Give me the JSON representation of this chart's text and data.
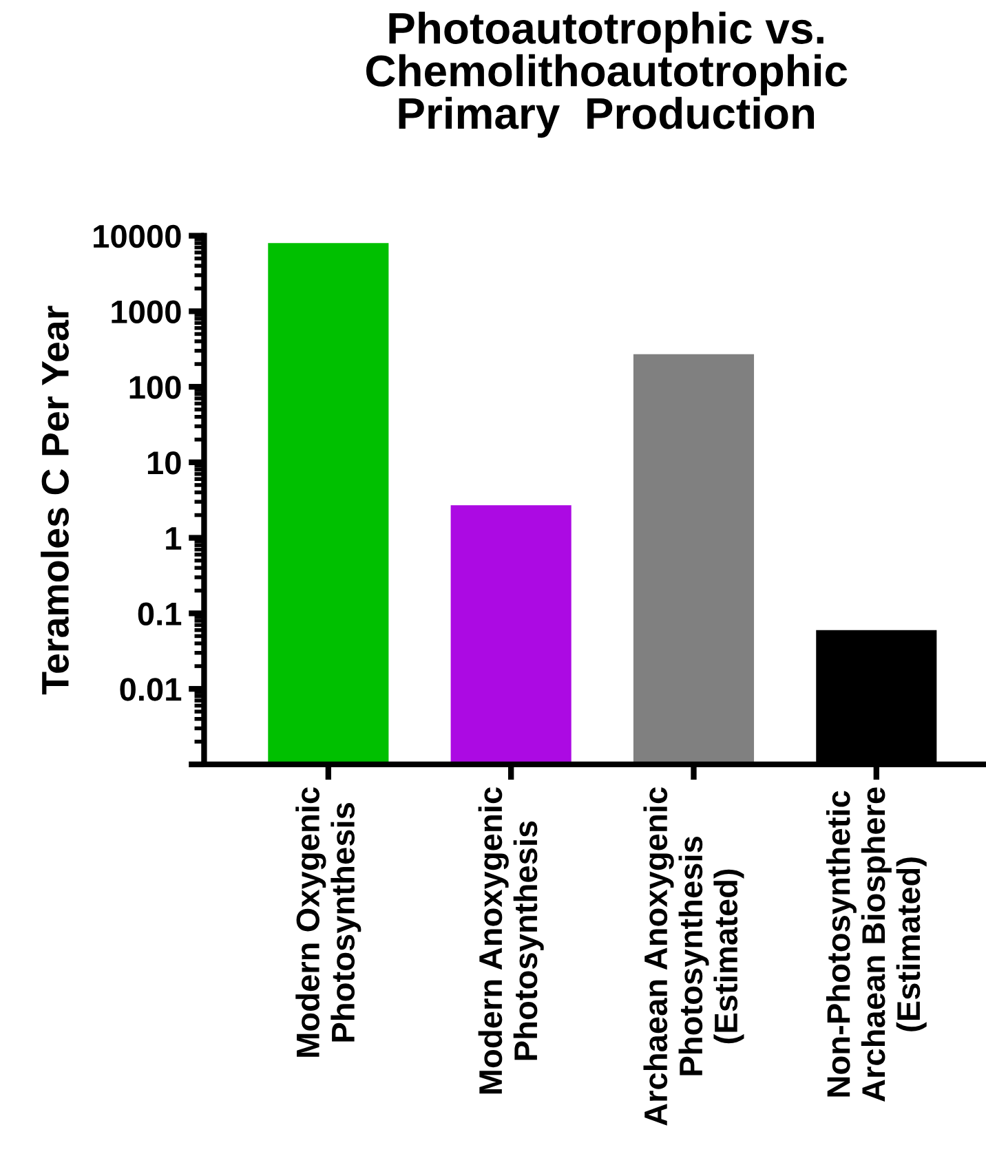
{
  "chart_data": {
    "type": "bar",
    "title": "Photoautotrophic vs.\nChemolithoautotrophic\nPrimary  Production",
    "ylabel": "Teramoles C Per Year",
    "categories": [
      "Modern Oxygenic\nPhotosynthesis",
      "Modern Anoxygenic\nPhotosynthesis",
      "Archaean Anoxygenic\nPhotosynthesis\n(Estimated)",
      "Non-Photosynthetic\nArchaean Biosphere\n(Estimated)"
    ],
    "values": [
      8000,
      2.7,
      270,
      0.06
    ],
    "colors": [
      "#00c000",
      "#ac0ae3",
      "#808080",
      "#000000"
    ],
    "log": "y",
    "ylim": [
      0.001,
      10000
    ],
    "yticks": [
      {
        "value": 0.001,
        "label": null
      },
      0.01,
      0.1,
      1,
      10,
      100,
      1000,
      10000
    ],
    "grid": false,
    "legend": false
  }
}
